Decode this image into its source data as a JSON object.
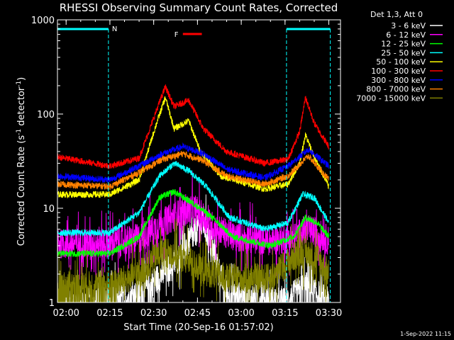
{
  "chart_data": {
    "type": "line",
    "title": "RHESSI Observing Summary Count Rates, Corrected",
    "xlabel": "Start Time (20-Sep-16 01:57:02)",
    "ylabel_main": "Corrected Count Rate (s",
    "ylabel_sup1": "-1",
    "ylabel_mid": " detector",
    "ylabel_sup2": "-1",
    "ylabel_end": ")",
    "y_scale": "log",
    "ylim": [
      1,
      1000
    ],
    "xlim": [
      "01:57:02",
      "03:34:00"
    ],
    "x_ticks": [
      "02:00",
      "02:15",
      "02:30",
      "02:45",
      "03:00",
      "03:15",
      "03:30"
    ],
    "y_ticks": [
      "1",
      "10",
      "100",
      "1000"
    ],
    "legend_title": "Det 1,3, Att 0",
    "legend_placement": "right",
    "footer_date": "1-Sep-2022 11:15",
    "annotations": {
      "night": [
        {
          "label": "N",
          "start": "01:57:02",
          "end": "02:14:30"
        },
        {
          "label": "",
          "start": "03:15:30",
          "end": "03:30:30"
        }
      ],
      "flare": {
        "label": "F",
        "start": "02:40:00",
        "end": "02:46:30"
      }
    },
    "series": [
      {
        "name": "3 - 6 keV",
        "color": "#ffffff",
        "points": [
          [
            "01:57:02",
            1.0
          ],
          [
            "02:10",
            1.0
          ],
          [
            "02:25",
            1.2
          ],
          [
            "02:33",
            2.0
          ],
          [
            "02:38",
            2.8
          ],
          [
            "02:43",
            5.0
          ],
          [
            "02:47",
            7.0
          ],
          [
            "02:51",
            3.0
          ],
          [
            "02:55",
            1.2
          ],
          [
            "03:15",
            1.0
          ],
          [
            "03:22",
            1.5
          ],
          [
            "03:30",
            1.0
          ]
        ]
      },
      {
        "name": "6 - 12 keV",
        "color": "#ff00ff",
        "points": [
          [
            "01:57:02",
            4.2
          ],
          [
            "02:15",
            4.2
          ],
          [
            "02:25",
            4.8
          ],
          [
            "02:33",
            7.0
          ],
          [
            "02:38",
            8.5
          ],
          [
            "02:44",
            10.0
          ],
          [
            "02:50",
            6.5
          ],
          [
            "02:57",
            5.0
          ],
          [
            "03:10",
            4.5
          ],
          [
            "03:18",
            4.8
          ],
          [
            "03:22",
            6.0
          ],
          [
            "03:26",
            5.5
          ],
          [
            "03:30",
            4.5
          ]
        ]
      },
      {
        "name": "12 - 25 keV",
        "color": "#00ff00",
        "points": [
          [
            "01:57:02",
            3.3
          ],
          [
            "02:15",
            3.3
          ],
          [
            "02:25",
            5.0
          ],
          [
            "02:32",
            13.0
          ],
          [
            "02:37",
            15.0
          ],
          [
            "02:44",
            11.0
          ],
          [
            "02:50",
            8.0
          ],
          [
            "02:57",
            5.0
          ],
          [
            "03:10",
            4.0
          ],
          [
            "03:18",
            5.0
          ],
          [
            "03:22",
            8.0
          ],
          [
            "03:26",
            7.0
          ],
          [
            "03:30",
            5.0
          ]
        ]
      },
      {
        "name": "25 - 50 keV",
        "color": "#00ffff",
        "points": [
          [
            "01:57:02",
            5.5
          ],
          [
            "02:15",
            5.5
          ],
          [
            "02:25",
            9.0
          ],
          [
            "02:32",
            22.0
          ],
          [
            "02:37",
            30.0
          ],
          [
            "02:42",
            25.0
          ],
          [
            "02:48",
            17.0
          ],
          [
            "02:56",
            8.0
          ],
          [
            "03:08",
            6.0
          ],
          [
            "03:16",
            7.0
          ],
          [
            "03:21",
            14.0
          ],
          [
            "03:25",
            13.0
          ],
          [
            "03:30",
            7.0
          ]
        ]
      },
      {
        "name": "50 - 100 keV",
        "color": "#ffff00",
        "points": [
          [
            "01:57:02",
            14.0
          ],
          [
            "02:15",
            14.0
          ],
          [
            "02:25",
            20.0
          ],
          [
            "02:31",
            80.0
          ],
          [
            "02:34",
            150.0
          ],
          [
            "02:37",
            70.0
          ],
          [
            "02:42",
            85.0
          ],
          [
            "02:46",
            40.0
          ],
          [
            "02:53",
            22.0
          ],
          [
            "03:08",
            16.0
          ],
          [
            "03:16",
            18.0
          ],
          [
            "03:20",
            30.0
          ],
          [
            "03:22",
            60.0
          ],
          [
            "03:25",
            35.0
          ],
          [
            "03:30",
            17.0
          ]
        ]
      },
      {
        "name": "100 - 300 keV",
        "color": "#ff0000",
        "points": [
          [
            "01:57:02",
            35.0
          ],
          [
            "02:15",
            28.0
          ],
          [
            "02:25",
            34.0
          ],
          [
            "02:31",
            110.0
          ],
          [
            "02:34",
            195.0
          ],
          [
            "02:37",
            120.0
          ],
          [
            "02:42",
            140.0
          ],
          [
            "02:47",
            70.0
          ],
          [
            "02:55",
            40.0
          ],
          [
            "03:08",
            30.0
          ],
          [
            "03:16",
            33.0
          ],
          [
            "03:20",
            65.0
          ],
          [
            "03:22",
            150.0
          ],
          [
            "03:25",
            80.0
          ],
          [
            "03:30",
            45.0
          ]
        ]
      },
      {
        "name": "300 - 800 keV",
        "color": "#0000ff",
        "points": [
          [
            "01:57:02",
            22.0
          ],
          [
            "02:15",
            20.0
          ],
          [
            "02:25",
            28.0
          ],
          [
            "02:33",
            38.0
          ],
          [
            "02:40",
            45.0
          ],
          [
            "02:47",
            38.0
          ],
          [
            "02:55",
            26.0
          ],
          [
            "03:08",
            21.0
          ],
          [
            "03:16",
            28.0
          ],
          [
            "03:23",
            42.0
          ],
          [
            "03:30",
            28.0
          ]
        ]
      },
      {
        "name": "800 - 7000 keV",
        "color": "#ff8000",
        "points": [
          [
            "01:57:02",
            18.0
          ],
          [
            "02:15",
            17.0
          ],
          [
            "02:25",
            24.0
          ],
          [
            "02:33",
            33.0
          ],
          [
            "02:40",
            38.0
          ],
          [
            "02:47",
            32.0
          ],
          [
            "02:55",
            22.0
          ],
          [
            "03:08",
            18.0
          ],
          [
            "03:16",
            22.0
          ],
          [
            "03:23",
            36.0
          ],
          [
            "03:30",
            20.0
          ]
        ]
      },
      {
        "name": "7000 - 15000 keV",
        "color": "#808000",
        "points": [
          [
            "01:57:02",
            1.5
          ],
          [
            "02:15",
            1.5
          ],
          [
            "02:25",
            2.0
          ],
          [
            "02:33",
            3.5
          ],
          [
            "02:40",
            3.0
          ],
          [
            "02:47",
            2.2
          ],
          [
            "02:55",
            1.8
          ],
          [
            "03:10",
            1.8
          ],
          [
            "03:20",
            3.5
          ],
          [
            "03:26",
            3.0
          ],
          [
            "03:30",
            2.0
          ]
        ]
      }
    ]
  }
}
